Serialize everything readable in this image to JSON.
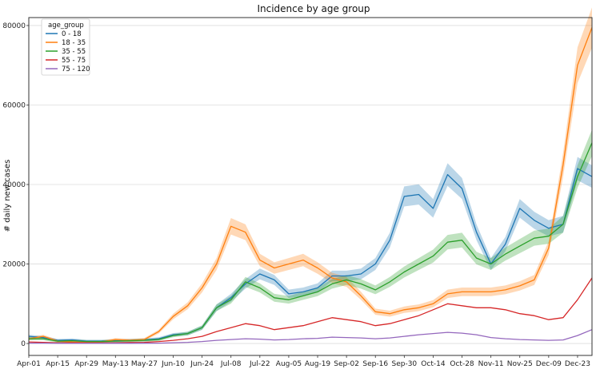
{
  "chart_data": {
    "type": "line",
    "title": "Incidence by age group",
    "xlabel": "",
    "ylabel": "# daily new cases",
    "ylim": [
      -3000,
      82000
    ],
    "yticks": [
      0,
      20000,
      40000,
      60000,
      80000
    ],
    "grid": "horizontal",
    "legend": {
      "title": "age_group",
      "placement": "top-left"
    },
    "x": [
      "Apr-01",
      "Apr-08",
      "Apr-15",
      "Apr-22",
      "Apr-29",
      "May-06",
      "May-13",
      "May-20",
      "May-27",
      "Jun-03",
      "Jun-10",
      "Jun-17",
      "Jun-24",
      "Jul-01",
      "Jul-08",
      "Jul-15",
      "Jul-22",
      "Jul-29",
      "Aug-05",
      "Aug-12",
      "Aug-19",
      "Aug-26",
      "Sep-02",
      "Sep-09",
      "Sep-16",
      "Sep-23",
      "Sep-30",
      "Oct-07",
      "Oct-14",
      "Oct-21",
      "Oct-28",
      "Nov-04",
      "Nov-11",
      "Nov-18",
      "Nov-25",
      "Dec-02",
      "Dec-09",
      "Dec-16",
      "Dec-23",
      "Dec-27"
    ],
    "xtick_labels": [
      "Apr-01",
      "Apr-15",
      "Apr-29",
      "May-13",
      "May-27",
      "Jun-10",
      "Jun-24",
      "Jul-08",
      "Jul-22",
      "Aug-05",
      "Aug-19",
      "Sep-02",
      "Sep-16",
      "Sep-30",
      "Oct-14",
      "Oct-28",
      "Nov-11",
      "Nov-25",
      "Dec-09",
      "Dec-23"
    ],
    "series": [
      {
        "name": "0 - 18",
        "color": "#1f77b4",
        "band": true,
        "values": [
          1800,
          1500,
          800,
          900,
          600,
          600,
          700,
          800,
          900,
          1200,
          2200,
          2500,
          4000,
          9000,
          11500,
          15000,
          17500,
          16000,
          12500,
          13000,
          14000,
          17000,
          17000,
          17500,
          20000,
          26000,
          37000,
          37500,
          34000,
          42500,
          39000,
          28000,
          20000,
          25000,
          34000,
          31000,
          29000,
          30000,
          44000,
          42000
        ]
      },
      {
        "name": "18 - 35",
        "color": "#ff7f0e",
        "band": true,
        "values": [
          1200,
          1800,
          600,
          400,
          300,
          400,
          1000,
          800,
          1000,
          3000,
          6800,
          9500,
          14000,
          20000,
          29500,
          28000,
          21000,
          19000,
          20000,
          21000,
          19000,
          16500,
          15500,
          12000,
          8000,
          7500,
          8500,
          9000,
          10000,
          12500,
          13000,
          13000,
          13000,
          13500,
          14500,
          16000,
          24000,
          45000,
          70000,
          79500
        ]
      },
      {
        "name": "35 - 55",
        "color": "#2ca02c",
        "band": true,
        "values": [
          1200,
          1200,
          600,
          700,
          500,
          500,
          600,
          700,
          800,
          1000,
          2000,
          2500,
          4000,
          9000,
          11000,
          15500,
          14000,
          11500,
          11000,
          12000,
          13000,
          15000,
          16000,
          15000,
          13500,
          15500,
          18000,
          20000,
          22000,
          25500,
          26000,
          21500,
          20000,
          22500,
          24500,
          26500,
          27000,
          30000,
          42000,
          50500
        ]
      },
      {
        "name": "55 - 75",
        "color": "#d62728",
        "band": false,
        "values": [
          400,
          300,
          200,
          200,
          150,
          150,
          200,
          250,
          300,
          500,
          800,
          1200,
          1800,
          3000,
          4000,
          5000,
          4500,
          3500,
          4000,
          4500,
          5500,
          6500,
          6000,
          5500,
          4500,
          5000,
          6000,
          7000,
          8500,
          10000,
          9500,
          9000,
          9000,
          8500,
          7500,
          7000,
          6000,
          6500,
          11000,
          16500
        ]
      },
      {
        "name": "75 - 120",
        "color": "#9467bd",
        "band": false,
        "values": [
          100,
          100,
          50,
          50,
          50,
          50,
          50,
          60,
          80,
          100,
          200,
          300,
          500,
          800,
          1000,
          1200,
          1100,
          900,
          1000,
          1200,
          1300,
          1600,
          1500,
          1400,
          1200,
          1400,
          1800,
          2200,
          2500,
          2800,
          2600,
          2200,
          1500,
          1200,
          1000,
          900,
          800,
          900,
          2000,
          3500
        ]
      }
    ]
  }
}
